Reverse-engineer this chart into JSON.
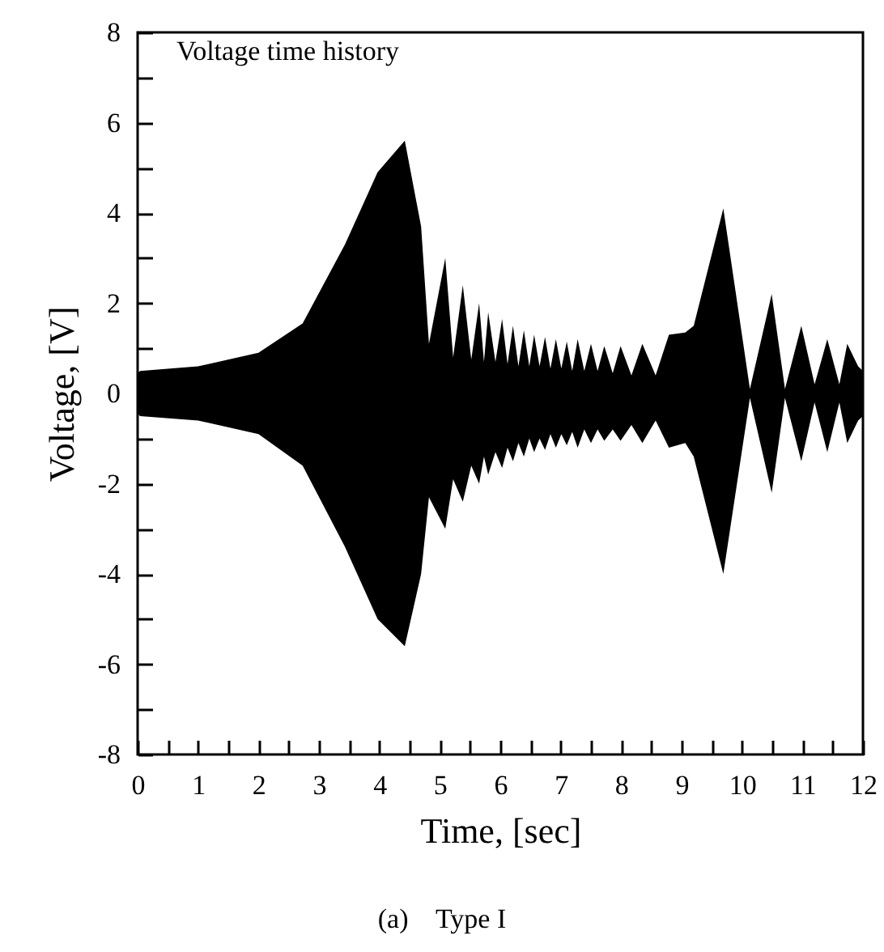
{
  "chart_data": {
    "type": "area",
    "title": "Voltage time history",
    "xlabel": "Time, [sec]",
    "ylabel": "Voltage, [V]",
    "annotations": [
      "(a)    Type I"
    ],
    "x": [
      0,
      0.04,
      1.0,
      2.0,
      2.73,
      3.43,
      3.97,
      4.42,
      4.69,
      4.82,
      5.09,
      5.22,
      5.38,
      5.52,
      5.65,
      5.73,
      5.8,
      5.92,
      6.03,
      6.12,
      6.21,
      6.3,
      6.39,
      6.48,
      6.56,
      6.65,
      6.74,
      6.83,
      6.92,
      7.01,
      7.1,
      7.19,
      7.28,
      7.39,
      7.5,
      7.61,
      7.72,
      7.86,
      7.99,
      8.17,
      8.35,
      8.57,
      8.79,
      9.06,
      9.2,
      9.69,
      10.13,
      10.49,
      10.71,
      10.98,
      11.2,
      11.41,
      11.61,
      11.74,
      11.92,
      12
    ],
    "series": [
      {
        "color": "#000000",
        "values": [
          0.45,
          0.5,
          0.6,
          0.9,
          1.55,
          3.3,
          4.9,
          5.6,
          3.7,
          1.1,
          3.0,
          0.8,
          2.4,
          0.75,
          2.0,
          0.7,
          1.8,
          0.7,
          1.65,
          0.65,
          1.5,
          0.6,
          1.4,
          0.6,
          1.3,
          0.6,
          1.25,
          0.55,
          1.2,
          0.55,
          1.15,
          0.5,
          1.2,
          0.5,
          1.1,
          0.5,
          1.05,
          0.45,
          1.05,
          0.4,
          1.1,
          0.4,
          1.3,
          1.35,
          1.5,
          4.1,
          0.1,
          2.2,
          0.1,
          1.5,
          0.2,
          1.2,
          0.2,
          1.1,
          0.6,
          0.5
        ]
      },
      {
        "color": "#000000",
        "values": [
          -0.45,
          -0.5,
          -0.6,
          -0.9,
          -1.6,
          -3.4,
          -5.0,
          -5.6,
          -4.0,
          -2.3,
          -3.0,
          -1.9,
          -2.4,
          -1.6,
          -2.0,
          -1.4,
          -1.8,
          -1.3,
          -1.65,
          -1.2,
          -1.5,
          -1.1,
          -1.4,
          -1.0,
          -1.3,
          -1.0,
          -1.25,
          -0.9,
          -1.2,
          -0.9,
          -1.15,
          -0.85,
          -1.2,
          -0.8,
          -1.1,
          -0.8,
          -1.05,
          -0.8,
          -1.05,
          -0.7,
          -1.1,
          -0.6,
          -1.2,
          -1.1,
          -1.4,
          -4.0,
          -0.1,
          -2.2,
          -0.1,
          -1.5,
          -0.2,
          -1.3,
          -0.2,
          -1.1,
          -0.6,
          -0.5
        ]
      }
    ],
    "xlim": [
      0,
      12
    ],
    "ylim": [
      -8,
      8
    ],
    "xticks": [
      0,
      {
        "value": 0.5,
        "label": null
      },
      1,
      {
        "value": 1.5,
        "label": null
      },
      2,
      {
        "value": 2.5,
        "label": null
      },
      3,
      {
        "value": 3.5,
        "label": null
      },
      4,
      {
        "value": 4.5,
        "label": null
      },
      5,
      {
        "value": 5.5,
        "label": null
      },
      6,
      {
        "value": 6.5,
        "label": null
      },
      7,
      {
        "value": 7.5,
        "label": null
      },
      8,
      {
        "value": 8.5,
        "label": null
      },
      9,
      {
        "value": 9.5,
        "label": null
      },
      10,
      {
        "value": 10.5,
        "label": null
      },
      11,
      {
        "value": 11.5,
        "label": null
      },
      12
    ],
    "yticks": [
      -8,
      {
        "value": -7,
        "label": null
      },
      -6,
      {
        "value": -5,
        "label": null
      },
      -4,
      {
        "value": -3,
        "label": null
      },
      -2,
      {
        "value": -1,
        "label": null
      },
      0,
      {
        "value": 1,
        "label": null
      },
      2,
      {
        "value": 3,
        "label": null
      },
      4,
      {
        "value": 5,
        "label": null
      },
      6,
      {
        "value": 7,
        "label": null
      },
      8
    ],
    "grid": false
  }
}
